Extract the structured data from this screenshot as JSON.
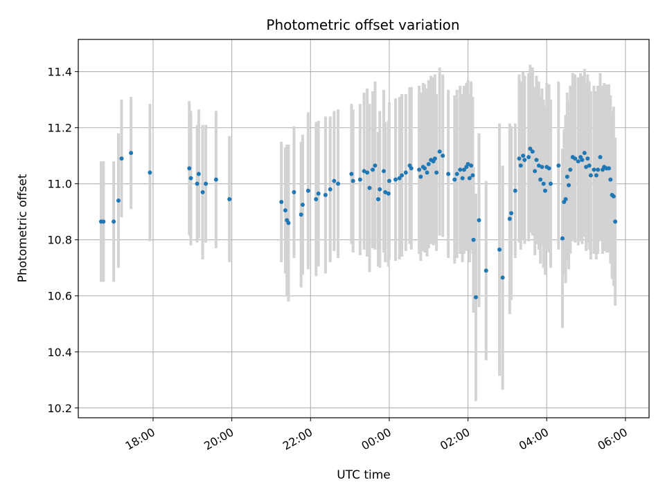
{
  "chart_data": {
    "type": "scatter",
    "title": "Photometric offset variation",
    "xlabel": "UTC time",
    "ylabel": "Photometric offset",
    "x_unit": "hour (UTC, continuing past midnight as 24+)",
    "xlim": [
      16.1,
      30.6
    ],
    "ylim": [
      10.165,
      11.515
    ],
    "x_ticks": [
      {
        "value": 18,
        "label": "18:00"
      },
      {
        "value": 20,
        "label": "20:00"
      },
      {
        "value": 22,
        "label": "22:00"
      },
      {
        "value": 24,
        "label": "00:00"
      },
      {
        "value": 26,
        "label": "02:00"
      },
      {
        "value": 28,
        "label": "04:00"
      },
      {
        "value": 30,
        "label": "06:00"
      }
    ],
    "y_ticks": [
      {
        "value": 10.2,
        "label": "10.2"
      },
      {
        "value": 10.4,
        "label": "10.4"
      },
      {
        "value": 10.6,
        "label": "10.6"
      },
      {
        "value": 10.8,
        "label": "10.8"
      },
      {
        "value": 11.0,
        "label": "11.0"
      },
      {
        "value": 11.2,
        "label": "11.2"
      },
      {
        "value": 11.4,
        "label": "11.4"
      }
    ],
    "grid": true,
    "colors": {
      "point": "#1f77b4",
      "errorbar": "#d3d3d3",
      "grid": "#b0b0b0",
      "axes": "#000000"
    },
    "points": [
      [
        16.68,
        10.865,
        0.215
      ],
      [
        16.74,
        10.865,
        0.215
      ],
      [
        17.0,
        10.865,
        0.215
      ],
      [
        17.12,
        10.94,
        0.24
      ],
      [
        17.2,
        11.09,
        0.21
      ],
      [
        17.44,
        11.11,
        0.2
      ],
      [
        17.92,
        11.04,
        0.245
      ],
      [
        18.92,
        11.055,
        0.24
      ],
      [
        18.96,
        11.02,
        0.24
      ],
      [
        19.12,
        11.0,
        0.21
      ],
      [
        19.16,
        11.035,
        0.23
      ],
      [
        19.26,
        10.97,
        0.24
      ],
      [
        19.34,
        11.0,
        0.21
      ],
      [
        19.6,
        11.015,
        0.245
      ],
      [
        19.94,
        10.945,
        0.225
      ],
      [
        21.26,
        10.935,
        0.215
      ],
      [
        21.36,
        10.905,
        0.225
      ],
      [
        21.4,
        10.87,
        0.27
      ],
      [
        21.44,
        10.86,
        0.28
      ],
      [
        21.58,
        10.97,
        0.235
      ],
      [
        21.76,
        10.89,
        0.26
      ],
      [
        21.8,
        10.925,
        0.25
      ],
      [
        21.94,
        10.975,
        0.28
      ],
      [
        22.14,
        10.945,
        0.275
      ],
      [
        22.2,
        10.965,
        0.26
      ],
      [
        22.38,
        10.96,
        0.28
      ],
      [
        22.5,
        10.98,
        0.26
      ],
      [
        22.6,
        11.01,
        0.25
      ],
      [
        22.7,
        11.0,
        0.265
      ],
      [
        23.04,
        11.035,
        0.25
      ],
      [
        23.08,
        11.01,
        0.255
      ],
      [
        23.26,
        11.015,
        0.27
      ],
      [
        23.36,
        11.045,
        0.28
      ],
      [
        23.44,
        11.04,
        0.3
      ],
      [
        23.5,
        10.985,
        0.3
      ],
      [
        23.58,
        11.05,
        0.28
      ],
      [
        23.64,
        11.065,
        0.3
      ],
      [
        23.72,
        10.945,
        0.24
      ],
      [
        23.76,
        10.98,
        0.28
      ],
      [
        23.86,
        11.045,
        0.29
      ],
      [
        23.9,
        10.97,
        0.25
      ],
      [
        23.98,
        10.965,
        0.26
      ],
      [
        24.0,
        11.01,
        0.28
      ],
      [
        24.16,
        11.015,
        0.29
      ],
      [
        24.26,
        11.02,
        0.29
      ],
      [
        24.32,
        11.03,
        0.29
      ],
      [
        24.42,
        11.04,
        0.28
      ],
      [
        24.52,
        11.065,
        0.28
      ],
      [
        24.56,
        11.055,
        0.29
      ],
      [
        24.76,
        11.05,
        0.3
      ],
      [
        24.8,
        11.025,
        0.3
      ],
      [
        24.86,
        11.06,
        0.3
      ],
      [
        24.9,
        11.055,
        0.3
      ],
      [
        24.96,
        11.04,
        0.3
      ],
      [
        25.0,
        11.07,
        0.3
      ],
      [
        25.06,
        11.085,
        0.3
      ],
      [
        25.12,
        11.08,
        0.3
      ],
      [
        25.16,
        11.09,
        0.3
      ],
      [
        25.2,
        11.04,
        0.28
      ],
      [
        25.28,
        11.115,
        0.3
      ],
      [
        25.36,
        11.1,
        0.29
      ],
      [
        25.5,
        11.035,
        0.3
      ],
      [
        25.66,
        11.015,
        0.3
      ],
      [
        25.72,
        11.035,
        0.3
      ],
      [
        25.8,
        11.05,
        0.3
      ],
      [
        25.86,
        11.02,
        0.3
      ],
      [
        25.9,
        11.05,
        0.3
      ],
      [
        25.96,
        11.06,
        0.3
      ],
      [
        26.0,
        11.07,
        0.3
      ],
      [
        26.04,
        11.02,
        0.3
      ],
      [
        26.08,
        11.065,
        0.3
      ],
      [
        26.12,
        11.03,
        0.28
      ],
      [
        26.14,
        10.8,
        0.26
      ],
      [
        26.2,
        10.595,
        0.37
      ],
      [
        26.28,
        10.87,
        0.31
      ],
      [
        26.46,
        10.69,
        0.32
      ],
      [
        26.8,
        10.765,
        0.45
      ],
      [
        26.88,
        10.665,
        0.4
      ],
      [
        27.06,
        10.875,
        0.34
      ],
      [
        27.1,
        10.895,
        0.31
      ],
      [
        27.2,
        10.975,
        0.24
      ],
      [
        27.3,
        11.09,
        0.3
      ],
      [
        27.34,
        11.065,
        0.3
      ],
      [
        27.4,
        11.1,
        0.3
      ],
      [
        27.44,
        11.085,
        0.3
      ],
      [
        27.54,
        11.095,
        0.3
      ],
      [
        27.58,
        11.125,
        0.3
      ],
      [
        27.64,
        11.115,
        0.3
      ],
      [
        27.7,
        11.045,
        0.3
      ],
      [
        27.74,
        11.085,
        0.3
      ],
      [
        27.8,
        11.065,
        0.3
      ],
      [
        27.84,
        11.015,
        0.3
      ],
      [
        27.88,
        11.06,
        0.28
      ],
      [
        27.92,
        11.0,
        0.3
      ],
      [
        27.96,
        10.975,
        0.3
      ],
      [
        28.0,
        11.06,
        0.3
      ],
      [
        28.06,
        11.055,
        0.3
      ],
      [
        28.1,
        11.0,
        0.3
      ],
      [
        28.3,
        11.065,
        0.3
      ],
      [
        28.4,
        10.805,
        0.32
      ],
      [
        28.44,
        10.935,
        0.26
      ],
      [
        28.48,
        10.945,
        0.3
      ],
      [
        28.52,
        11.025,
        0.3
      ],
      [
        28.56,
        10.995,
        0.3
      ],
      [
        28.6,
        11.05,
        0.3
      ],
      [
        28.66,
        11.095,
        0.3
      ],
      [
        28.72,
        11.09,
        0.3
      ],
      [
        28.8,
        11.08,
        0.3
      ],
      [
        28.86,
        11.095,
        0.3
      ],
      [
        28.9,
        11.085,
        0.3
      ],
      [
        28.96,
        11.11,
        0.3
      ],
      [
        29.0,
        11.06,
        0.3
      ],
      [
        29.04,
        11.09,
        0.3
      ],
      [
        29.08,
        11.065,
        0.3
      ],
      [
        29.12,
        11.03,
        0.3
      ],
      [
        29.2,
        11.05,
        0.3
      ],
      [
        29.26,
        11.03,
        0.3
      ],
      [
        29.3,
        11.05,
        0.3
      ],
      [
        29.36,
        11.095,
        0.3
      ],
      [
        29.42,
        11.05,
        0.3
      ],
      [
        29.46,
        11.06,
        0.3
      ],
      [
        29.52,
        11.055,
        0.3
      ],
      [
        29.58,
        11.055,
        0.3
      ],
      [
        29.62,
        11.015,
        0.3
      ],
      [
        29.66,
        10.96,
        0.3
      ],
      [
        29.7,
        10.955,
        0.32
      ],
      [
        29.74,
        10.865,
        0.3
      ]
    ]
  }
}
